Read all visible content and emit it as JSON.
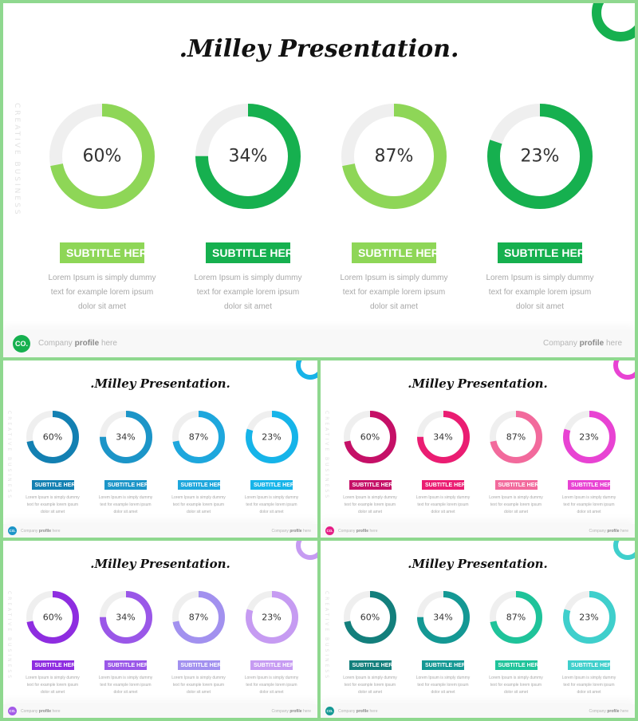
{
  "title": ".Milley Presentation.",
  "side_text": "CREATIVE BUSINESS",
  "subtitle_label": "SUBTITLE HERE",
  "desc_lines": [
    "Lorem Ipsum is simply dummy",
    "text for example lorem ipsum",
    "dolor sit amet"
  ],
  "logo_text": "CO.",
  "company_prefix": "Company",
  "company_bold": "profile",
  "company_suffix": "here",
  "percent_labels": [
    "60%",
    "34%",
    "87%",
    "23%"
  ],
  "values": [
    60,
    34,
    87,
    23
  ],
  "themes": [
    {
      "name": "green",
      "track": "#efefef",
      "colors": [
        "#8ed657",
        "#16b04f",
        "#8ed657",
        "#16b04f"
      ],
      "logo": "#16b04f",
      "ring": "#16b04f"
    },
    {
      "name": "blue",
      "track": "#efefef",
      "colors": [
        "#1380b2",
        "#1c95c8",
        "#1ea7dd",
        "#16b4e9"
      ],
      "logo": "#1c95c8",
      "ring": "#17b3e8"
    },
    {
      "name": "pink",
      "track": "#efefef",
      "colors": [
        "#c51067",
        "#ea1d72",
        "#f26a9c",
        "#e843d3"
      ],
      "logo": "#e51d86",
      "ring": "#e843d3"
    },
    {
      "name": "purple",
      "track": "#efefef",
      "colors": [
        "#8e2de0",
        "#9a57e8",
        "#a291ef",
        "#c69bf2"
      ],
      "logo": "#a45ae8",
      "ring": "#c69bf2"
    },
    {
      "name": "teal",
      "track": "#efefef",
      "colors": [
        "#137f7c",
        "#149894",
        "#1fc39a",
        "#3fcfcc"
      ],
      "logo": "#149894",
      "ring": "#3fcfcc"
    }
  ]
}
